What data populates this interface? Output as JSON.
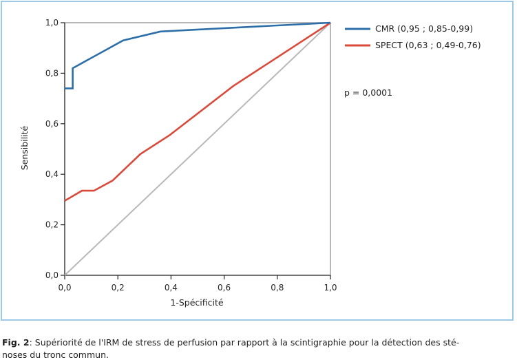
{
  "chart_data": {
    "type": "line",
    "xlabel": "1-Spécificité",
    "ylabel": "Sensibilité",
    "xlim": [
      0,
      1
    ],
    "ylim": [
      0,
      1
    ],
    "x_ticks": [
      "0,0",
      "0,2",
      "0,4",
      "0,6",
      "0,8",
      "1,0"
    ],
    "y_ticks": [
      "0,0",
      "0,2",
      "0,4",
      "0,6",
      "0,8",
      "1,0"
    ],
    "grid": false,
    "legend_position": "right",
    "series": [
      {
        "name": "CMR (0,95 ; 0,85-0,99)",
        "color": "#2b6ea8",
        "x": [
          0.0,
          0.0,
          0.03,
          0.03,
          0.22,
          0.36,
          1.0
        ],
        "y": [
          0.74,
          0.74,
          0.74,
          0.82,
          0.93,
          0.965,
          1.0
        ]
      },
      {
        "name": "SPECT (0,63 ; 0,49-0,76)",
        "color": "#d94a3a",
        "x": [
          0.0,
          0.065,
          0.11,
          0.18,
          0.285,
          0.395,
          0.635,
          1.0
        ],
        "y": [
          0.295,
          0.335,
          0.335,
          0.375,
          0.48,
          0.555,
          0.75,
          1.0
        ]
      },
      {
        "name": "",
        "color": "#b8b8b8",
        "x": [
          0,
          1
        ],
        "y": [
          0,
          1
        ]
      }
    ],
    "annotation": "p = 0,0001"
  },
  "caption": {
    "label": "Fig. 2",
    "text": ": Supériorité de l'IRM de stress de perfusion par rapport à la scintigraphie pour la détection des sté-",
    "text2": "noses du tronc commun."
  }
}
